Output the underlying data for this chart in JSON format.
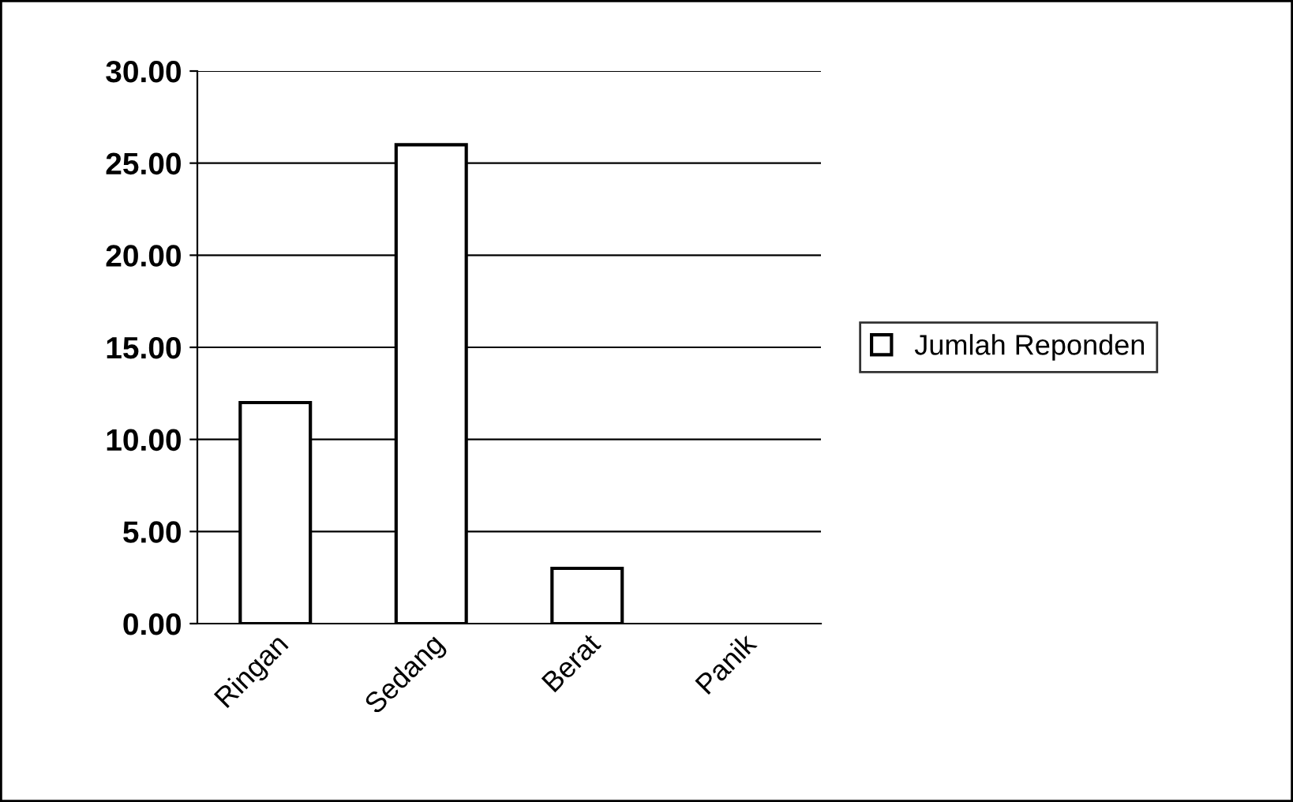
{
  "chart_data": {
    "type": "bar",
    "categories": [
      "Ringan",
      "Sedang",
      "Berat",
      "Panik"
    ],
    "series": [
      {
        "name": "Jumlah Reponden",
        "color": "#ffffff",
        "values": [
          12,
          26,
          3,
          0
        ]
      }
    ],
    "ylim": [
      0,
      30
    ],
    "yticks": [
      {
        "value": 0,
        "label": "0.00"
      },
      {
        "value": 5,
        "label": "5.00"
      },
      {
        "value": 10,
        "label": "10.00"
      },
      {
        "value": 15,
        "label": "15.00"
      },
      {
        "value": 20,
        "label": "20.00"
      },
      {
        "value": 25,
        "label": "25.00"
      },
      {
        "value": 30,
        "label": "30.00"
      }
    ],
    "grid": "y",
    "legend": "right"
  }
}
